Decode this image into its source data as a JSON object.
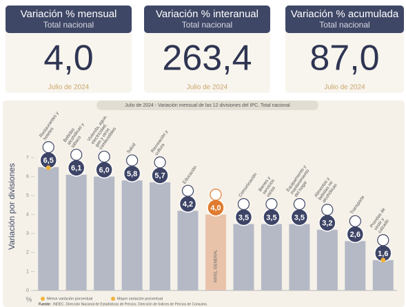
{
  "cards": [
    {
      "title": "Variación % mensual",
      "subtitle": "Total nacional",
      "value": "4,0",
      "date": "Julio de 2024"
    },
    {
      "title": "Variación % interanual",
      "subtitle": "Total nacional",
      "value": "263,4",
      "date": "Julio de 2024"
    },
    {
      "title": "Variación % acumulada",
      "subtitle": "Total nacional",
      "value": "87,0",
      "date": "Julio de 2024"
    }
  ],
  "chart_data": {
    "type": "bar",
    "title": "Julio de 2024 - Variación mensual de las 12 divisiones del IPC. Total nacional",
    "y_label": "Variación por divisiones",
    "y_unit": "%",
    "categories": [
      "Restaurantes y hoteles",
      "Bebidas alcohólicas y tabaco",
      "Vivienda, agua, electricidad, gas y otros combustibles",
      "Salud",
      "Recreación y cultura",
      "Educación",
      "NIVEL GENERAL",
      "Comunicación",
      "Bienes y servicios varios",
      "Equipamiento y mantenimiento del hogar",
      "Alimentos y bebidas no alcohólicas",
      "Transporte",
      "Prendas de vestir y calzado"
    ],
    "values": [
      6.5,
      6.1,
      6.0,
      5.8,
      5.7,
      4.2,
      4.0,
      3.5,
      3.5,
      3.5,
      3.2,
      2.6,
      1.6
    ],
    "value_labels": [
      "6,5",
      "6,1",
      "6,0",
      "5,8",
      "5,7",
      "4,2",
      "4,0",
      "3,5",
      "3,5",
      "3,5",
      "3,2",
      "2,6",
      "1,6"
    ],
    "color": "#b5b9c6",
    "highlight": 6,
    "highlight_color": "#e8c3aa",
    "badge_color": "#3d4466",
    "highlight_badge_color": "#e07a2e",
    "ylim": [
      0,
      7
    ],
    "yticks": [
      0,
      1,
      2,
      3,
      4,
      5,
      6,
      7
    ],
    "legend": [
      {
        "name": "Menor variación porcentual"
      },
      {
        "name": "Mayor variación porcentual"
      }
    ],
    "marker_color": "#f2b33d",
    "source_label": "Fuente:",
    "source": "INDEC. Dirección Nacional de Estadísticas de Precios. Dirección de Índices de Precios de Consumo."
  }
}
